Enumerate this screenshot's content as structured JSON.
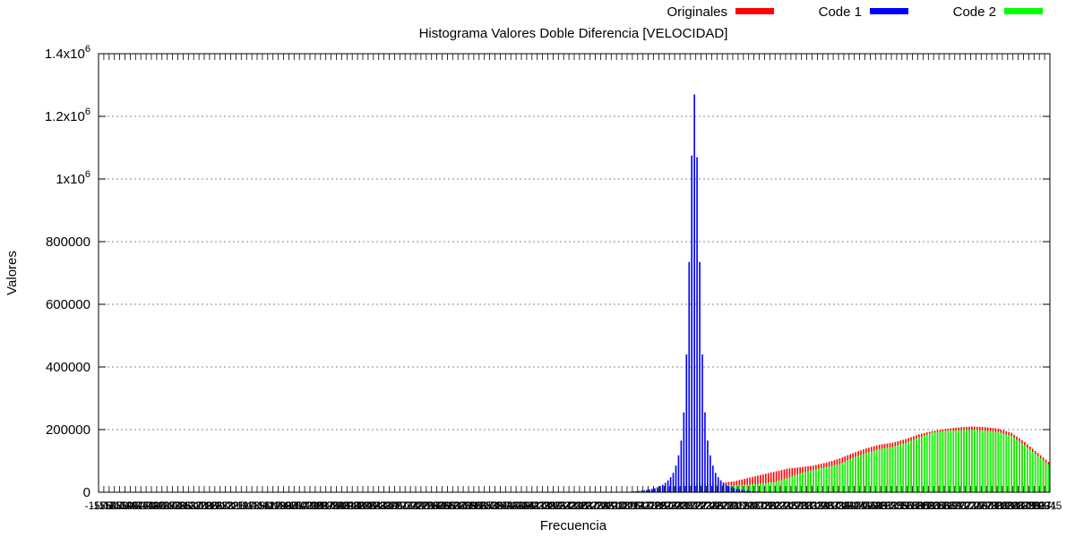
{
  "chart_data": {
    "type": "bar",
    "title": "Histograma Valores Doble Diferencia [VELOCIDAD]",
    "xlabel": "Frecuencia",
    "ylabel": "Valores",
    "ylim": [
      0,
      1400000
    ],
    "yticks": [
      {
        "value": 0,
        "label": "0"
      },
      {
        "value": 200000,
        "label": "200000"
      },
      {
        "value": 400000,
        "label": "400000"
      },
      {
        "value": 600000,
        "label": "600000"
      },
      {
        "value": 800000,
        "label": "800000"
      },
      {
        "value": 1000000,
        "label": "1x10",
        "exp": "6"
      },
      {
        "value": 1200000,
        "label": "1.2x10",
        "exp": "6"
      },
      {
        "value": 1400000,
        "label": "1.4x10",
        "exp": "6"
      }
    ],
    "grid": true,
    "legend_placement": "top-right",
    "x_tick_labels_illegible": true,
    "bin_count": 360,
    "series": [
      {
        "name": "Originales",
        "color": "#ff0000",
        "mode": "curve",
        "points": [
          [
            0,
            0
          ],
          [
            190,
            0
          ],
          [
            200,
            1000
          ],
          [
            205,
            3000
          ],
          [
            210,
            10000
          ],
          [
            215,
            16000
          ],
          [
            220,
            18000
          ],
          [
            225,
            22000
          ],
          [
            230,
            27000
          ],
          [
            235,
            30000
          ],
          [
            240,
            35000
          ],
          [
            245,
            45000
          ],
          [
            250,
            55000
          ],
          [
            255,
            65000
          ],
          [
            260,
            75000
          ],
          [
            265,
            80000
          ],
          [
            270,
            85000
          ],
          [
            275,
            95000
          ],
          [
            280,
            108000
          ],
          [
            285,
            125000
          ],
          [
            290,
            140000
          ],
          [
            295,
            152000
          ],
          [
            300,
            158000
          ],
          [
            305,
            170000
          ],
          [
            310,
            185000
          ],
          [
            315,
            195000
          ],
          [
            320,
            202000
          ],
          [
            325,
            207000
          ],
          [
            330,
            210000
          ],
          [
            335,
            208000
          ],
          [
            340,
            203000
          ],
          [
            345,
            190000
          ],
          [
            350,
            160000
          ],
          [
            355,
            125000
          ],
          [
            360,
            90000
          ],
          [
            365,
            60000
          ],
          [
            370,
            38000
          ],
          [
            375,
            22000
          ],
          [
            380,
            12000
          ],
          [
            385,
            6000
          ],
          [
            390,
            2000
          ],
          [
            395,
            500
          ],
          [
            400,
            0
          ]
        ]
      },
      {
        "name": "Code 1",
        "color": "#0000ff",
        "mode": "spike",
        "center": 225,
        "peak": 1270000,
        "side_values": [
          1075000,
          735000,
          440000,
          255000,
          165000,
          118000,
          85000,
          62000,
          48000,
          38000,
          30000,
          24000,
          20000,
          16000,
          13000,
          11000,
          9000,
          7500,
          6000,
          5000,
          4000,
          3200,
          2500,
          2000,
          1500,
          1100,
          800,
          500
        ]
      },
      {
        "name": "Code 2",
        "color": "#00ff00",
        "mode": "curve",
        "points": [
          [
            0,
            0
          ],
          [
            190,
            0
          ],
          [
            200,
            1000
          ],
          [
            205,
            3000
          ],
          [
            210,
            8000
          ],
          [
            215,
            14000
          ],
          [
            220,
            18000
          ],
          [
            225,
            30000
          ],
          [
            230,
            26000
          ],
          [
            235,
            25000
          ],
          [
            240,
            22000
          ],
          [
            245,
            24000
          ],
          [
            250,
            28000
          ],
          [
            255,
            32000
          ],
          [
            260,
            45000
          ],
          [
            265,
            60000
          ],
          [
            270,
            72000
          ],
          [
            275,
            80000
          ],
          [
            280,
            90000
          ],
          [
            285,
            110000
          ],
          [
            290,
            125000
          ],
          [
            295,
            138000
          ],
          [
            300,
            145000
          ],
          [
            305,
            158000
          ],
          [
            310,
            175000
          ],
          [
            315,
            190000
          ],
          [
            320,
            196000
          ],
          [
            325,
            198000
          ],
          [
            330,
            200000
          ],
          [
            335,
            197000
          ],
          [
            340,
            192000
          ],
          [
            345,
            180000
          ],
          [
            350,
            150000
          ],
          [
            355,
            115000
          ],
          [
            360,
            82000
          ],
          [
            365,
            52000
          ],
          [
            370,
            30000
          ],
          [
            375,
            17000
          ],
          [
            380,
            9000
          ],
          [
            385,
            4000
          ],
          [
            390,
            1500
          ],
          [
            395,
            300
          ],
          [
            400,
            0
          ]
        ]
      }
    ]
  }
}
